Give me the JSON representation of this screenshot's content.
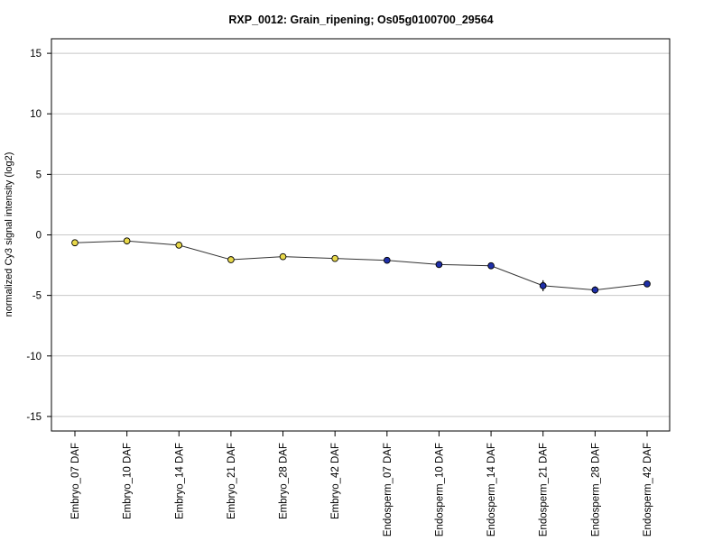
{
  "chart_data": {
    "type": "line",
    "title": "RXP_0012: Grain_ripening; Os05g0100700_29564",
    "xlabel": "",
    "ylabel": "normalized Cy3 signal intensity (log2)",
    "ylim": [
      -16.2,
      16.2
    ],
    "yticks": [
      15,
      10,
      5,
      0,
      -5,
      -10,
      -15
    ],
    "grid": "horizontal",
    "categories": [
      "Embryo_07 DAF",
      "Embryo_10 DAF",
      "Embryo_14 DAF",
      "Embryo_21 DAF",
      "Embryo_28 DAF",
      "Embryo_42 DAF",
      "Endosperm_07 DAF",
      "Endosperm_10 DAF",
      "Endosperm_14 DAF",
      "Endosperm_21 DAF",
      "Endosperm_28 DAF",
      "Endosperm_42 DAF"
    ],
    "values": [
      -0.65,
      -0.5,
      -0.85,
      -2.05,
      -1.8,
      -1.95,
      -2.1,
      -2.45,
      -2.55,
      -4.2,
      -4.55,
      -4.05
    ],
    "errors": [
      0.1,
      0.1,
      0.15,
      0.1,
      0.1,
      0.1,
      0.1,
      0.1,
      0.1,
      0.45,
      0.3,
      0.1
    ],
    "point_colors": [
      "#e8d84a",
      "#e8d84a",
      "#e8d84a",
      "#e8d84a",
      "#e8d84a",
      "#e8d84a",
      "#1f2fa8",
      "#1f2fa8",
      "#1f2fa8",
      "#1f2fa8",
      "#1f2fa8",
      "#1f2fa8"
    ],
    "line_color": "#333333",
    "grid_color": "#c8c8c8"
  }
}
